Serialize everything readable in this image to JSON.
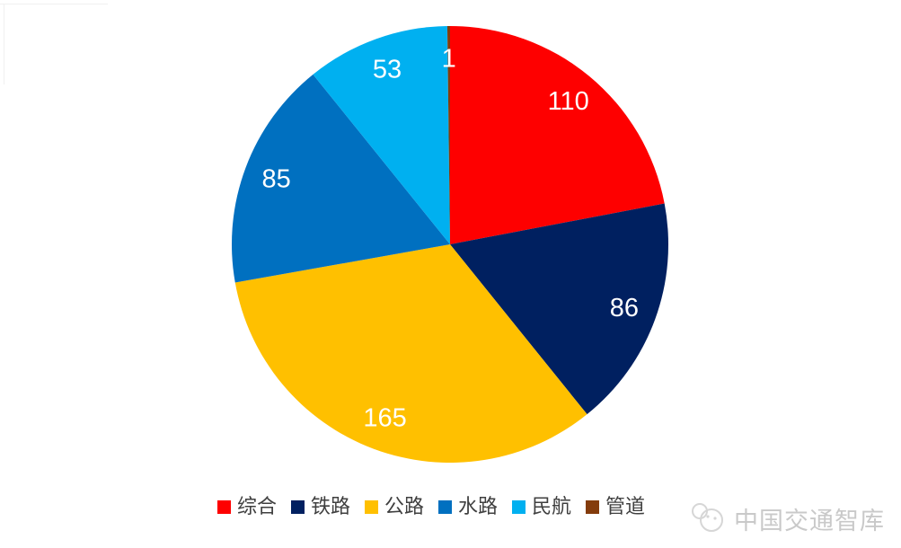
{
  "chart_data": {
    "type": "pie",
    "title": "",
    "slices": [
      {
        "key": "comprehensive",
        "label": "综合",
        "value": 110,
        "color": "#FE0000"
      },
      {
        "key": "railway",
        "label": "铁路",
        "value": 86,
        "color": "#002060"
      },
      {
        "key": "highway",
        "label": "公路",
        "value": 165,
        "color": "#FFC000"
      },
      {
        "key": "waterway",
        "label": "水路",
        "value": 85,
        "color": "#0070C0"
      },
      {
        "key": "civil-aviation",
        "label": "民航",
        "value": 53,
        "color": "#00B0F0"
      },
      {
        "key": "pipeline",
        "label": "管道",
        "value": 1,
        "color": "#843C0C"
      }
    ],
    "total": 500,
    "start_angle_deg": 0,
    "direction": "clockwise",
    "data_label_color": "#FFFFFF",
    "data_labels_shown": [
      "110",
      "86",
      "165",
      "85",
      "53",
      "1"
    ],
    "legend_position": "bottom",
    "grid": false
  },
  "watermark": {
    "text": "中国交通智库",
    "logo": "thinktank-logo-icon",
    "color": "#c9c9c9"
  }
}
